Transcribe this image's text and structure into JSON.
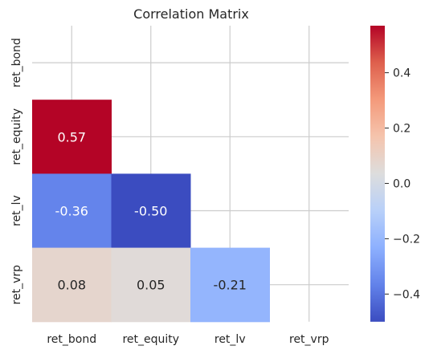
{
  "chart_data": {
    "type": "heatmap",
    "title": "Correlation Matrix",
    "row_labels": [
      "ret_bond",
      "ret_equity",
      "ret_lv",
      "ret_vrp"
    ],
    "col_labels": [
      "ret_bond",
      "ret_equity",
      "ret_lv",
      "ret_vrp"
    ],
    "mask": "upper-triangle-and-diagonal",
    "cells": [
      {
        "row": 1,
        "col": 0,
        "value": 0.57,
        "label": "0.57"
      },
      {
        "row": 2,
        "col": 0,
        "value": -0.36,
        "label": "-0.36"
      },
      {
        "row": 2,
        "col": 1,
        "value": -0.5,
        "label": "-0.50"
      },
      {
        "row": 3,
        "col": 0,
        "value": 0.08,
        "label": "0.08"
      },
      {
        "row": 3,
        "col": 1,
        "value": 0.05,
        "label": "0.05"
      },
      {
        "row": 3,
        "col": 2,
        "value": -0.21,
        "label": "-0.21"
      }
    ],
    "colorbar": {
      "colormap": "coolwarm",
      "range": [
        -0.5,
        0.57
      ],
      "ticks": [
        {
          "value": 0.4,
          "label": "0.4"
        },
        {
          "value": 0.2,
          "label": "0.2"
        },
        {
          "value": 0.0,
          "label": "0.0"
        },
        {
          "value": -0.2,
          "label": "−0.2"
        },
        {
          "value": -0.4,
          "label": "−0.4"
        }
      ]
    },
    "grid": true,
    "colors": {
      "low": "#3b4cc0",
      "mid": "#dddddd",
      "high": "#b40426",
      "grid": "#cccccc",
      "text": "#262626",
      "cell_text_dark": "#262626",
      "cell_text_light": "#ffffff"
    }
  }
}
